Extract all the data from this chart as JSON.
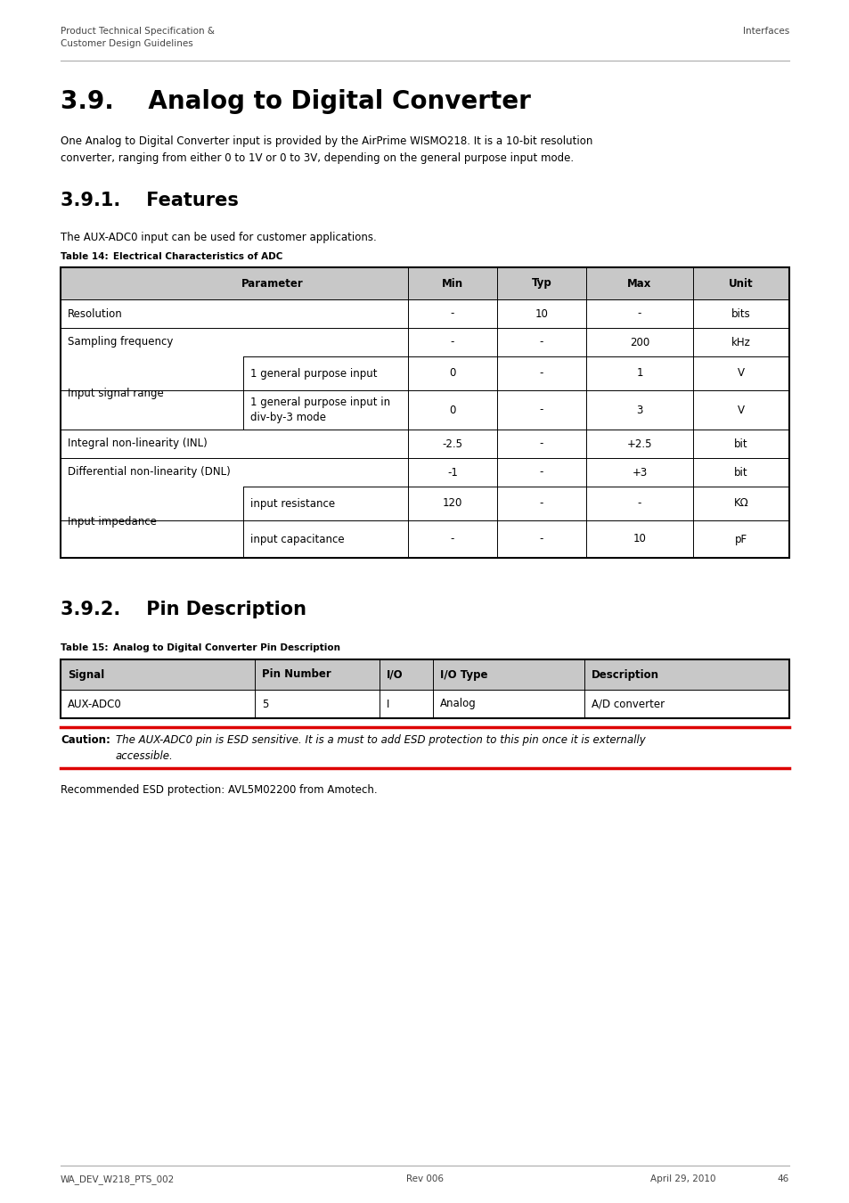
{
  "page_title_left": "Product Technical Specification &\nCustomer Design Guidelines",
  "page_title_right": "Interfaces",
  "footer_left": "WA_DEV_W218_PTS_002",
  "footer_center": "Rev 006",
  "footer_right_date": "April 29, 2010",
  "footer_right_page": "46",
  "section_title": "3.9.    Analog to Digital Converter",
  "section_body": "One Analog to Digital Converter input is provided by the AirPrime WISMO218. It is a 10-bit resolution\nconverter, ranging from either 0 to 1V or 0 to 3V, depending on the general purpose input mode.",
  "subsection1_title": "3.9.1.    Features",
  "subsection1_body": "The AUX-ADC0 input can be used for customer applications.",
  "table14_label_bold": "Table 14:",
  "table14_label_rest": "   Electrical Characteristics of ADC",
  "table15_label_bold": "Table 15:",
  "table15_label_rest": "   Analog to Digital Converter Pin Description",
  "subsection2_title": "3.9.2.    Pin Description",
  "caution_label": "Caution:",
  "caution_text": "The AUX-ADC0 pin is ESD sensitive. It is a must to add ESD protection to this pin once it is externally\naccessible.",
  "recommended_text": "Recommended ESD protection: AVL5M02200 from Amotech.",
  "bg_color": "#ffffff",
  "header_bg_color": "#c8c8c8",
  "table_border_color": "#000000",
  "text_color": "#000000",
  "caution_line_color": "#dd0000",
  "footer_color": "#444444"
}
